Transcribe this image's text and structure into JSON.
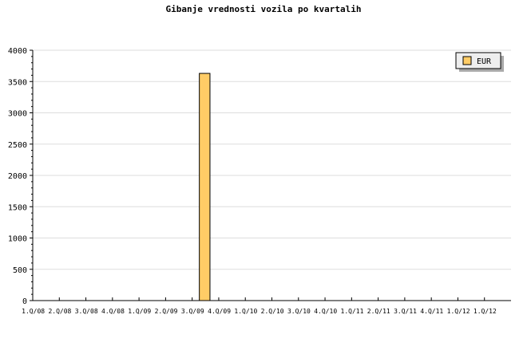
{
  "chart_data": {
    "type": "bar",
    "title": "Gibanje vrednosti vozila po kvartalih",
    "xlabel": "",
    "ylabel": "",
    "categories": [
      "1.Q/08",
      "2.Q/08",
      "3.Q/08",
      "4.Q/08",
      "1.Q/09",
      "2.Q/09",
      "3.Q/09",
      "4.Q/09",
      "1.Q/10",
      "2.Q/10",
      "3.Q/10",
      "4.Q/10",
      "1.Q/11",
      "2.Q/11",
      "3.Q/11",
      "4.Q/11",
      "1.Q/12",
      "1.Q/12"
    ],
    "series": [
      {
        "name": "EUR",
        "values": [
          0,
          0,
          0,
          0,
          0,
          0,
          3630,
          0,
          0,
          0,
          0,
          0,
          0,
          0,
          0,
          0,
          0,
          0
        ]
      }
    ],
    "ylim": [
      0,
      4000
    ],
    "yticks": [
      0,
      500,
      1000,
      1500,
      2000,
      2500,
      3000,
      3500,
      4000
    ],
    "grid": true,
    "legend": "top-right",
    "colors": {
      "bar": "#ffcc66",
      "grid": "#dddddd"
    }
  }
}
